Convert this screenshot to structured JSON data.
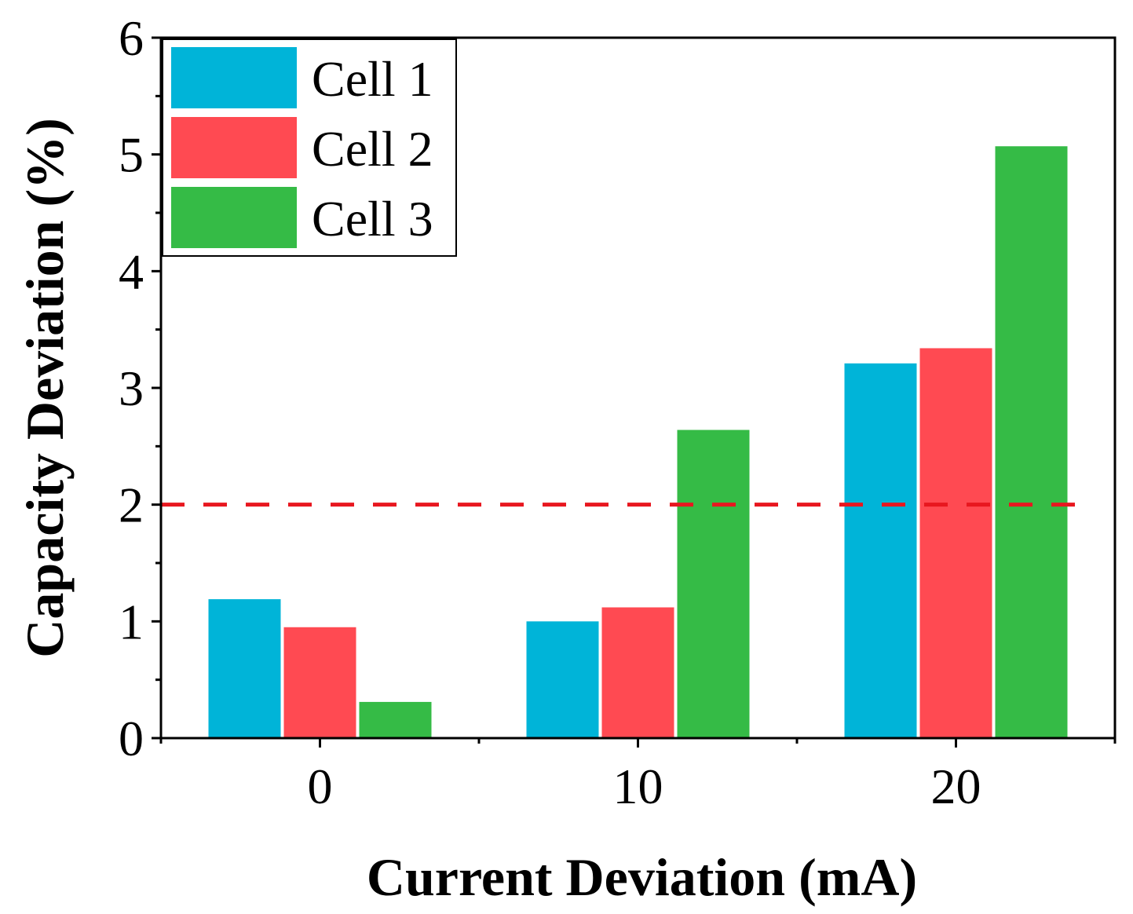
{
  "chart_data": {
    "type": "bar",
    "title": "",
    "xlabel": "Current Deviation (mA)",
    "ylabel": "Capacity Deviation (%)",
    "categories": [
      "0",
      "10",
      "20"
    ],
    "x": [
      0,
      10,
      20
    ],
    "xlim": [
      -5,
      25
    ],
    "ylim": [
      0,
      6
    ],
    "yticks": [
      "0",
      "1",
      "2",
      "3",
      "4",
      "5",
      "6"
    ],
    "series": [
      {
        "name": "Cell 1",
        "color": "#00b4d8",
        "values": [
          1.19,
          1.0,
          3.21
        ]
      },
      {
        "name": "Cell 2",
        "color": "#ff4a52",
        "values": [
          0.95,
          1.12,
          3.34
        ]
      },
      {
        "name": "Cell 3",
        "color": "#35bb46",
        "values": [
          0.31,
          2.64,
          5.07
        ]
      }
    ],
    "reference_line": {
      "y": 2,
      "color": "#e8171f",
      "style": "dashed"
    },
    "legend_position": "top-left",
    "grid": false
  }
}
